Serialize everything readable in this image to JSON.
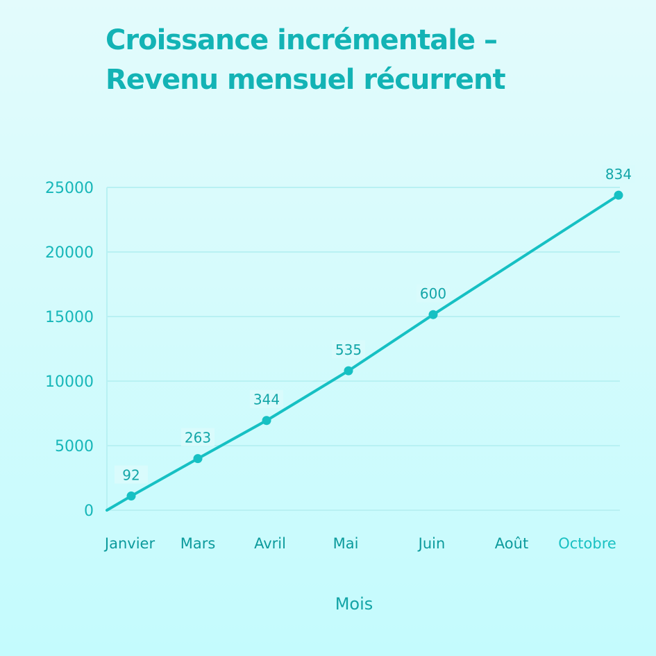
{
  "title_line1": "Croissance incrémentale –",
  "title_line2": "Revenu mensuel récurrent",
  "colors": {
    "line": "#16c0c3",
    "grid": "#b8f1f3",
    "text": "#13b3b5",
    "background": "#d6fbfc"
  },
  "chart_data": {
    "type": "line",
    "title": "Croissance incrémentale – Revenu mensuel récurrent",
    "xlabel": "Mois",
    "ylabel": "",
    "x_tick_labels": [
      "Janvier",
      "Mars",
      "Avril",
      "Mai",
      "Juin",
      "Août",
      "Octobre"
    ],
    "y_ticks": [
      0,
      5000,
      10000,
      15000,
      20000,
      25000
    ],
    "ylim": [
      0,
      25000
    ],
    "grid": true,
    "series": [
      {
        "points": [
          {
            "x": "Janvier",
            "y": 0,
            "label": ""
          },
          {
            "x": "Janvier",
            "y": 1100,
            "label": "92"
          },
          {
            "x": "Mars",
            "y": 4000,
            "label": "263"
          },
          {
            "x": "Avril",
            "y": 6950,
            "label": "344"
          },
          {
            "x": "Mai",
            "y": 10800,
            "label": "535"
          },
          {
            "x": "Juin",
            "y": 15150,
            "label": "600"
          },
          {
            "x": "Octobre",
            "y": 24400,
            "label": "834"
          }
        ]
      }
    ]
  }
}
